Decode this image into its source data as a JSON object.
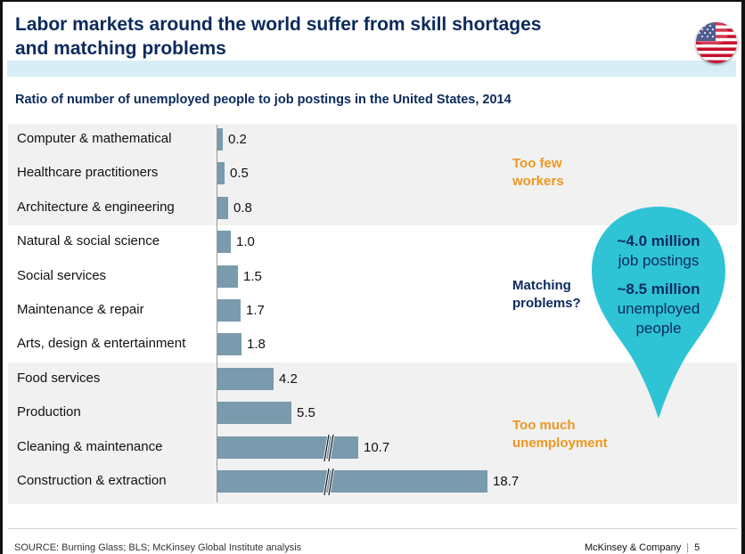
{
  "header": {
    "title_line1": "Labor markets around the world suffer from skill shortages",
    "title_line2": "and matching problems",
    "flag_icon": "us-flag-icon"
  },
  "subtitle": "Ratio of number of unemployed people to job postings in the United States, 2014",
  "chart_data": {
    "type": "bar",
    "orientation": "horizontal",
    "title": "Ratio of number of unemployed people to job postings in the United States, 2014",
    "categories": [
      "Computer & mathematical",
      "Healthcare practitioners",
      "Architecture & engineering",
      "Natural & social science",
      "Social services",
      "Maintenance & repair",
      "Arts, design & entertainment",
      "Food services",
      "Production",
      "Cleaning & maintenance",
      "Construction & extraction"
    ],
    "values": [
      0.2,
      0.5,
      0.8,
      1.0,
      1.5,
      1.7,
      1.8,
      4.2,
      5.5,
      10.7,
      18.7
    ],
    "value_labels": [
      "0.2",
      "0.5",
      "0.8",
      "1.0",
      "1.5",
      "1.7",
      "1.8",
      "4.2",
      "5.5",
      "10.7",
      "18.7"
    ],
    "broken_axis_bars": [
      9,
      10
    ],
    "bar_color": "#7a9aad",
    "groups": [
      {
        "label_line1": "Too few",
        "label_line2": "workers",
        "color": "#f0961e"
      },
      {
        "label_line1": "Matching",
        "label_line2": "problems?",
        "color": "#0b2a5c"
      },
      {
        "label_line1": "Too much",
        "label_line2": "unemployment",
        "color": "#f0961e"
      }
    ]
  },
  "callout": {
    "line1": "~4.0 million",
    "line2": "job postings",
    "line3": "~8.5 million",
    "line4": "unemployed",
    "line5": "people",
    "color": "#2ec4d6"
  },
  "footer": {
    "source": "SOURCE: Burning Glass; BLS; McKinsey Global Institute analysis",
    "brand": "McKinsey & Company",
    "page_number": "5"
  }
}
